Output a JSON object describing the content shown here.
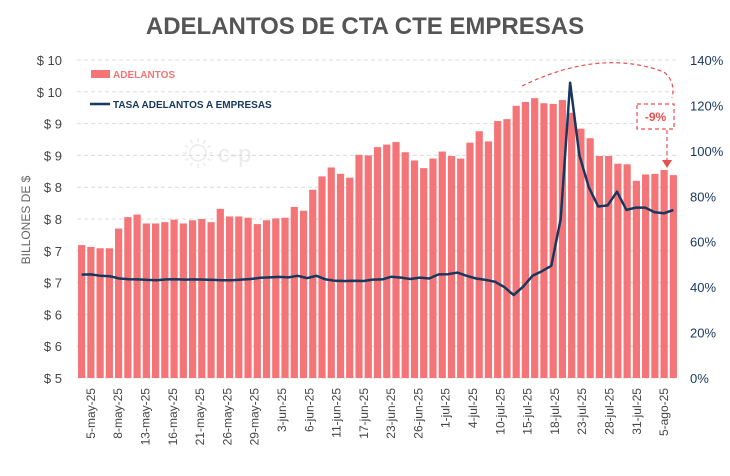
{
  "chart_data": {
    "type": "bar+line",
    "title": "ADELANTOS DE CTA CTE EMPRESAS",
    "ylabel": "BILLONES DE $",
    "left_ticks": [
      "$ 5",
      "$ 6",
      "$ 6",
      "$ 7",
      "$ 7",
      "$ 8",
      "$ 8",
      "$ 9",
      "$ 9",
      "$ 10",
      "$ 10"
    ],
    "right_ticks": [
      "0%",
      "20%",
      "40%",
      "60%",
      "80%",
      "100%",
      "120%",
      "140%"
    ],
    "left_range": [
      5.0,
      10.0
    ],
    "right_range": [
      0,
      140
    ],
    "x_tick_labels": [
      "5-may-25",
      "8-may-25",
      "13-may-25",
      "16-may-25",
      "21-may-25",
      "26-may-25",
      "29-may-25",
      "3-jun-25",
      "6-jun-25",
      "11-jun-25",
      "17-jun-25",
      "23-jun-25",
      "26-jun-25",
      "1-jul-25",
      "4-jul-25",
      "10-jul-25",
      "15-jul-25",
      "18-jul-25",
      "23-jul-25",
      "28-jul-25",
      "31-jul-25",
      "5-ago-25"
    ],
    "series": [
      {
        "name": "ADELANTOS",
        "kind": "bar",
        "color": "#F47577",
        "values": [
          7.09,
          7.06,
          7.04,
          7.04,
          7.35,
          7.53,
          7.57,
          7.43,
          7.43,
          7.45,
          7.49,
          7.43,
          7.48,
          7.5,
          7.45,
          7.66,
          7.54,
          7.54,
          7.52,
          7.42,
          7.48,
          7.51,
          7.52,
          7.69,
          7.63,
          7.96,
          8.17,
          8.31,
          8.21,
          8.15,
          8.51,
          8.5,
          8.63,
          8.67,
          8.71,
          8.55,
          8.42,
          8.3,
          8.45,
          8.56,
          8.49,
          8.45,
          8.7,
          8.88,
          8.72,
          9.04,
          9.07,
          9.28,
          9.34,
          9.4,
          9.32,
          9.31,
          9.37,
          9.17,
          8.92,
          8.77,
          8.49,
          8.49,
          8.37,
          8.36,
          8.1,
          8.2,
          8.21,
          8.27,
          8.19
        ]
      },
      {
        "name": "TASA ADELANTOS A EMPRESAS",
        "kind": "line",
        "axis": "right",
        "color": "#17375E",
        "values": [
          45.5,
          45.6,
          45,
          44.8,
          43.8,
          43.5,
          43.4,
          43.2,
          43,
          43.4,
          43.5,
          43.3,
          43.4,
          43.3,
          43.2,
          43,
          43,
          43.3,
          43.6,
          44.1,
          44.3,
          44.5,
          44.3,
          45,
          44,
          45,
          43.4,
          42.8,
          42.7,
          42.8,
          42.7,
          43.3,
          43.4,
          44.6,
          44.2,
          43.6,
          44.2,
          43.8,
          45.6,
          45.7,
          46.4,
          45,
          43.8,
          43.2,
          42.4,
          40,
          36.5,
          40.2,
          45,
          47,
          49.4,
          70,
          130,
          98,
          84,
          75.5,
          76,
          82,
          74,
          75,
          75,
          73,
          72.5,
          74
        ]
      }
    ],
    "annotation": {
      "text": "-9%",
      "color": "#E8514F"
    },
    "watermark": "c-p",
    "legend_position": "top-left",
    "grid": true
  }
}
